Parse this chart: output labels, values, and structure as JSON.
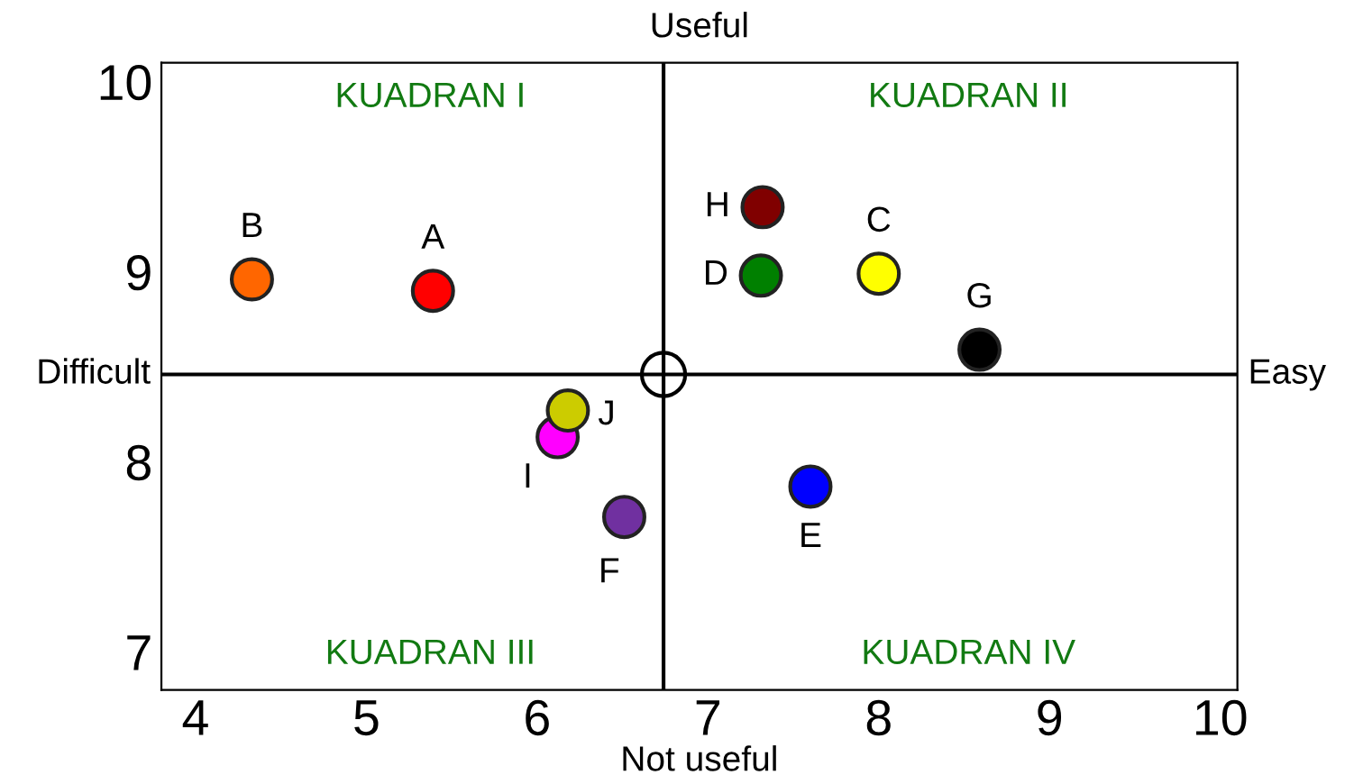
{
  "chart_data": {
    "type": "scatter",
    "title": "Useful",
    "xlabel": "Not useful",
    "ylabel": "Difficult",
    "y2label": "Easy",
    "annotations": [
      "KUADRAN I",
      "KUADRAN II",
      "KUADRAN III",
      "KUADRAN IV"
    ],
    "series": [
      {
        "name": "A",
        "color": "#ff0000",
        "x": [
          5.39
        ],
        "values": [
          8.9
        ]
      },
      {
        "name": "B",
        "color": "#ff6600",
        "x": [
          4.33
        ],
        "values": [
          8.96
        ]
      },
      {
        "name": "C",
        "color": "#ffff00",
        "x": [
          8.0
        ],
        "values": [
          8.99
        ]
      },
      {
        "name": "D",
        "color": "#008000",
        "x": [
          7.31
        ],
        "values": [
          8.98
        ]
      },
      {
        "name": "E",
        "color": "#0000ff",
        "x": [
          7.6
        ],
        "values": [
          7.87
        ]
      },
      {
        "name": "F",
        "color": "#7030a0",
        "x": [
          6.51
        ],
        "values": [
          7.71
        ]
      },
      {
        "name": "G",
        "color": "#000000",
        "x": [
          8.59
        ],
        "values": [
          8.59
        ]
      },
      {
        "name": "H",
        "color": "#800000",
        "x": [
          7.32
        ],
        "values": [
          9.34
        ]
      },
      {
        "name": "I",
        "color": "#ff00ff",
        "x": [
          6.12
        ],
        "values": [
          8.13
        ]
      },
      {
        "name": "J",
        "color": "#cccc00",
        "x": [
          6.18
        ],
        "values": [
          8.27
        ]
      }
    ],
    "ref_lines": [
      {
        "axis": "x",
        "value": 6.74,
        "color": "#000000"
      },
      {
        "axis": "y",
        "value": 8.46,
        "color": "#000000"
      }
    ],
    "xlim": [
      3.8,
      10.1
    ],
    "ylim": [
      6.8,
      10.1
    ],
    "xticks": [
      4,
      5,
      6,
      7,
      8,
      9,
      10
    ],
    "yticks": [
      7,
      8,
      9,
      10
    ],
    "grid": false,
    "legend": false,
    "marker": "circle"
  }
}
